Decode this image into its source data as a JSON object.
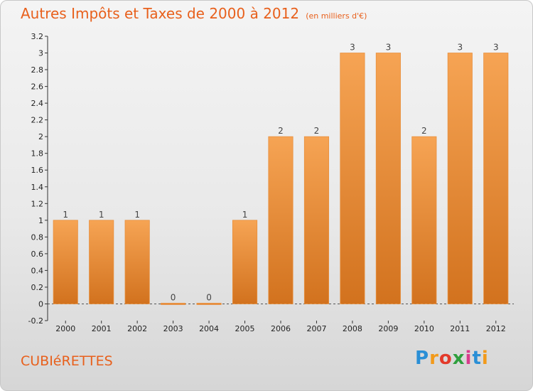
{
  "title": {
    "main": "Autres Impôts et Taxes de 2000 à 2012",
    "unit": "(en milliers d'€)"
  },
  "commune": "CUBIéRETTES",
  "logo": {
    "letters": [
      "P",
      "r",
      "o",
      "x",
      "i",
      "t",
      "i"
    ]
  },
  "colors": {
    "accent": "#e8601c",
    "bar_top": "#f6a454",
    "bar_bottom": "#d2721e"
  },
  "chart_data": {
    "type": "bar",
    "categories": [
      "2000",
      "2001",
      "2002",
      "2003",
      "2004",
      "2005",
      "2006",
      "2007",
      "2008",
      "2009",
      "2010",
      "2011",
      "2012"
    ],
    "values": [
      1,
      1,
      1,
      0,
      0,
      1,
      2,
      2,
      3,
      3,
      2,
      3,
      3
    ],
    "data_labels": [
      "1",
      "1",
      "1",
      "0",
      "0",
      "1",
      "2",
      "2",
      "3",
      "3",
      "2",
      "3",
      "3"
    ],
    "ylim": [
      -0.2,
      3.2
    ],
    "yticks": [
      -0.2,
      0,
      0.2,
      0.4,
      0.6,
      0.8,
      1,
      1.2,
      1.4,
      1.6,
      1.8,
      2,
      2.2,
      2.4,
      2.6,
      2.8,
      3,
      3.2
    ],
    "ytick_labels": [
      "-0.2",
      "0",
      "0.2",
      "0.4",
      "0.6",
      "0.8",
      "1",
      "1.2",
      "1.4",
      "1.6",
      "1.8",
      "2",
      "2.2",
      "2.4",
      "2.6",
      "2.8",
      "3",
      "3.2"
    ],
    "xlabel": "",
    "ylabel": "",
    "grid": false
  }
}
